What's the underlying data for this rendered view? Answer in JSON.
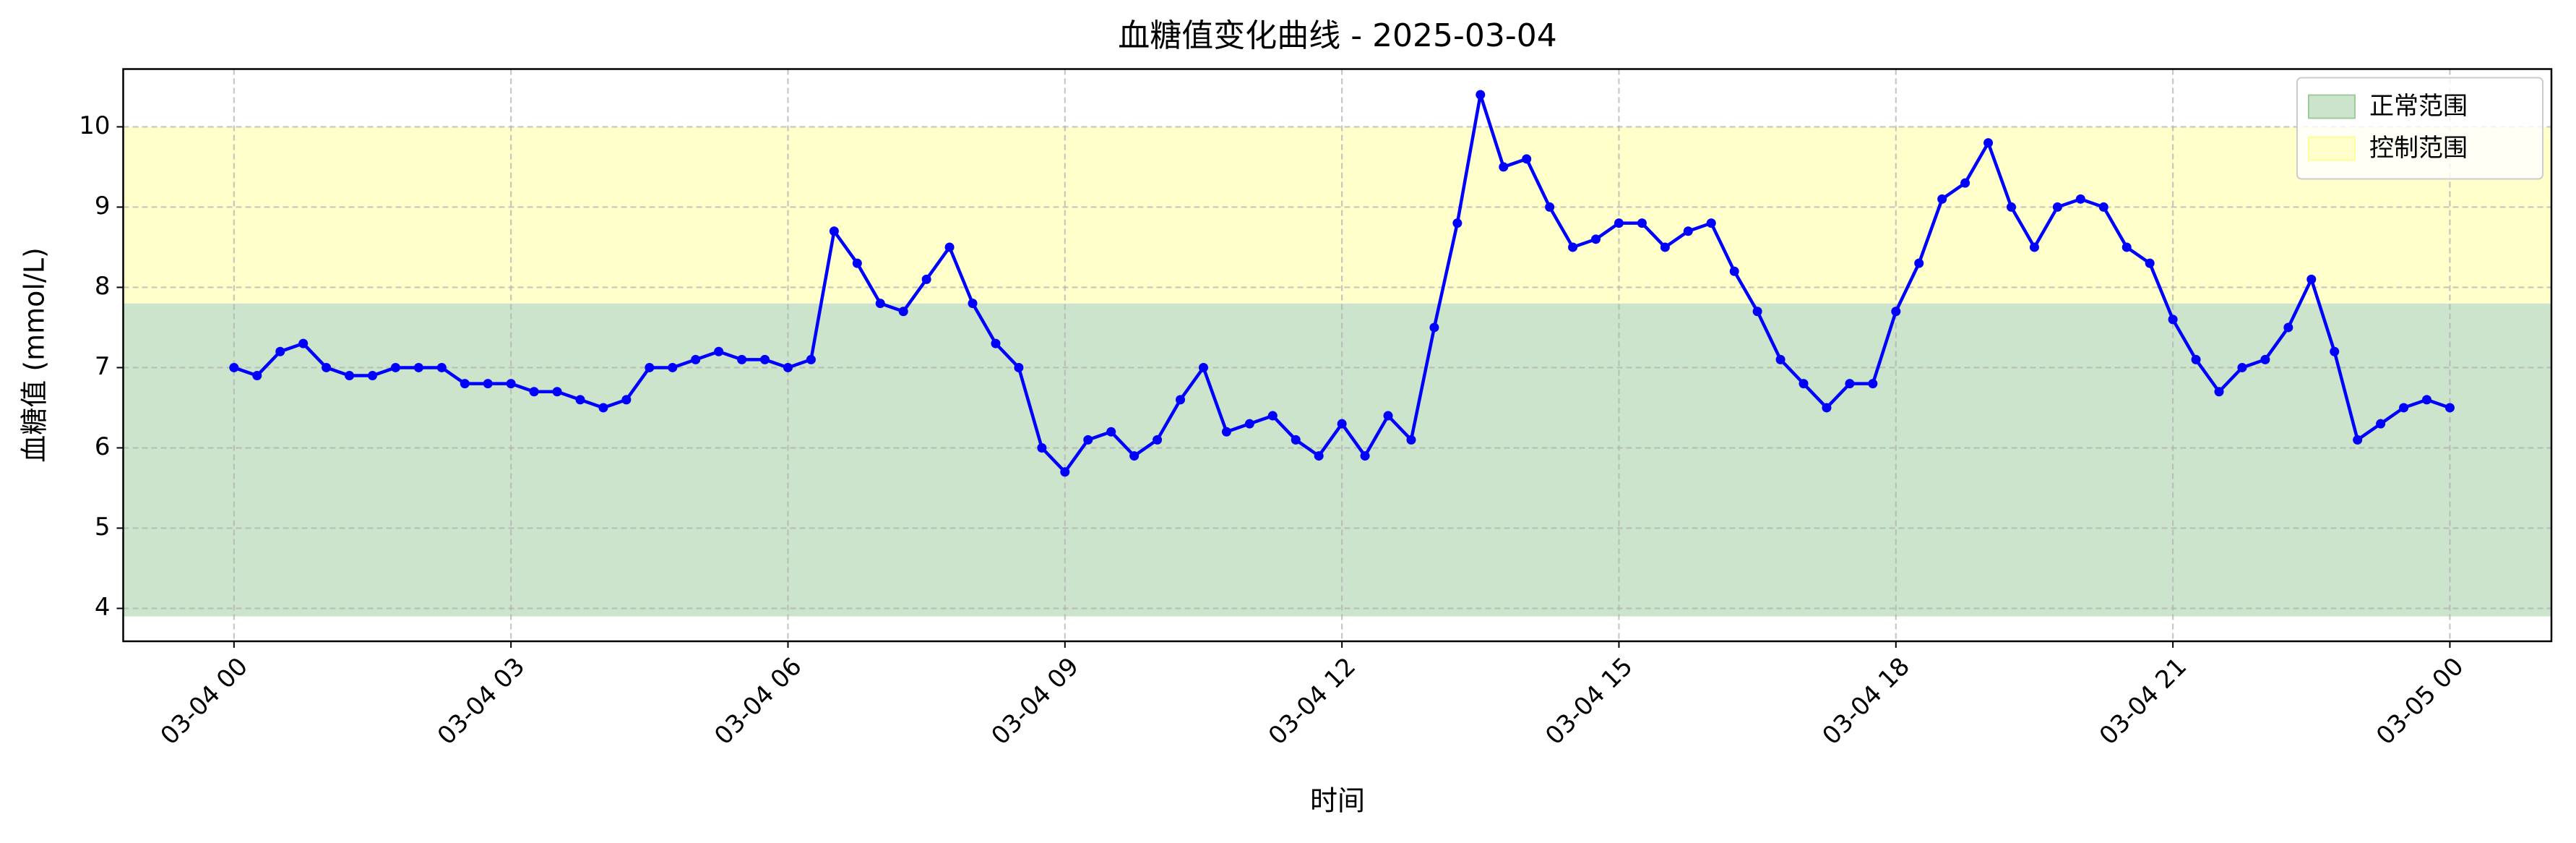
{
  "chart_data": {
    "type": "line",
    "title": "血糖值变化曲线 - 2025-03-04",
    "x_label": "时间",
    "y_label": "血糖值 (mmol/L)",
    "x": [
      0,
      0.25,
      0.5,
      0.75,
      1,
      1.25,
      1.5,
      1.75,
      2,
      2.25,
      2.5,
      2.75,
      3,
      3.25,
      3.5,
      3.75,
      4,
      4.25,
      4.5,
      4.75,
      5,
      5.25,
      5.5,
      5.75,
      6,
      6.25,
      6.5,
      6.75,
      7,
      7.25,
      7.5,
      7.75,
      8,
      8.25,
      8.5,
      8.75,
      9,
      9.25,
      9.5,
      9.75,
      10,
      10.25,
      10.5,
      10.75,
      11,
      11.25,
      11.5,
      11.75,
      12,
      12.25,
      12.5,
      12.75,
      13,
      13.25,
      13.5,
      13.75,
      14,
      14.25,
      14.5,
      14.75,
      15,
      15.25,
      15.5,
      15.75,
      16,
      16.25,
      16.5,
      16.75,
      17,
      17.25,
      17.5,
      17.75,
      18,
      18.25,
      18.5,
      18.75,
      19,
      19.25,
      19.5,
      19.75,
      20,
      20.25,
      20.5,
      20.75,
      21,
      21.25,
      21.5,
      21.75,
      22,
      22.25,
      22.5,
      22.75,
      23,
      23.25,
      23.5,
      23.75,
      24
    ],
    "values": [
      7.0,
      6.9,
      7.2,
      7.3,
      7.0,
      6.9,
      6.9,
      7.0,
      7.0,
      7.0,
      6.8,
      6.8,
      6.8,
      6.7,
      6.7,
      6.6,
      6.5,
      6.6,
      7.0,
      7.0,
      7.1,
      7.2,
      7.1,
      7.1,
      7.0,
      7.1,
      8.7,
      8.3,
      7.8,
      7.7,
      8.1,
      8.5,
      7.8,
      7.3,
      7.0,
      6.0,
      5.7,
      6.1,
      6.2,
      5.9,
      6.1,
      6.6,
      7.0,
      6.2,
      6.3,
      6.4,
      6.1,
      5.9,
      6.3,
      5.9,
      6.4,
      6.1,
      7.5,
      8.8,
      10.4,
      9.5,
      9.6,
      9.0,
      8.5,
      8.6,
      8.8,
      8.8,
      8.5,
      8.7,
      8.8,
      8.2,
      7.7,
      7.1,
      6.8,
      6.5,
      6.8,
      6.8,
      7.7,
      8.3,
      9.1,
      9.3,
      9.8,
      9.0,
      8.5,
      9.0,
      9.1,
      9.0,
      8.5,
      8.3,
      7.6,
      7.1,
      6.7,
      7.0,
      7.1,
      7.5,
      8.1,
      7.2,
      6.1,
      6.3,
      6.5,
      6.6,
      6.5
    ],
    "color": "#0000ff",
    "bands": [
      {
        "name": "正常范围",
        "range": [
          3.9,
          7.8
        ],
        "color": "#cce4cc"
      },
      {
        "name": "控制范围",
        "range": [
          7.8,
          10
        ],
        "color": "#ffffcc"
      }
    ],
    "xlim": [
      -1.2,
      25.1
    ],
    "ylim": [
      3.59,
      10.72
    ],
    "xticks": [
      {
        "value": 0,
        "label": "03-04 00"
      },
      {
        "value": 3,
        "label": "03-04 03"
      },
      {
        "value": 6,
        "label": "03-04 06"
      },
      {
        "value": 9,
        "label": "03-04 09"
      },
      {
        "value": 12,
        "label": "03-04 12"
      },
      {
        "value": 15,
        "label": "03-04 15"
      },
      {
        "value": 18,
        "label": "03-04 18"
      },
      {
        "value": 21,
        "label": "03-04 21"
      },
      {
        "value": 24,
        "label": "03-05 00"
      }
    ],
    "yticks": [
      4,
      5,
      6,
      7,
      8,
      9,
      10
    ],
    "grid": true,
    "legend": "upper right"
  }
}
